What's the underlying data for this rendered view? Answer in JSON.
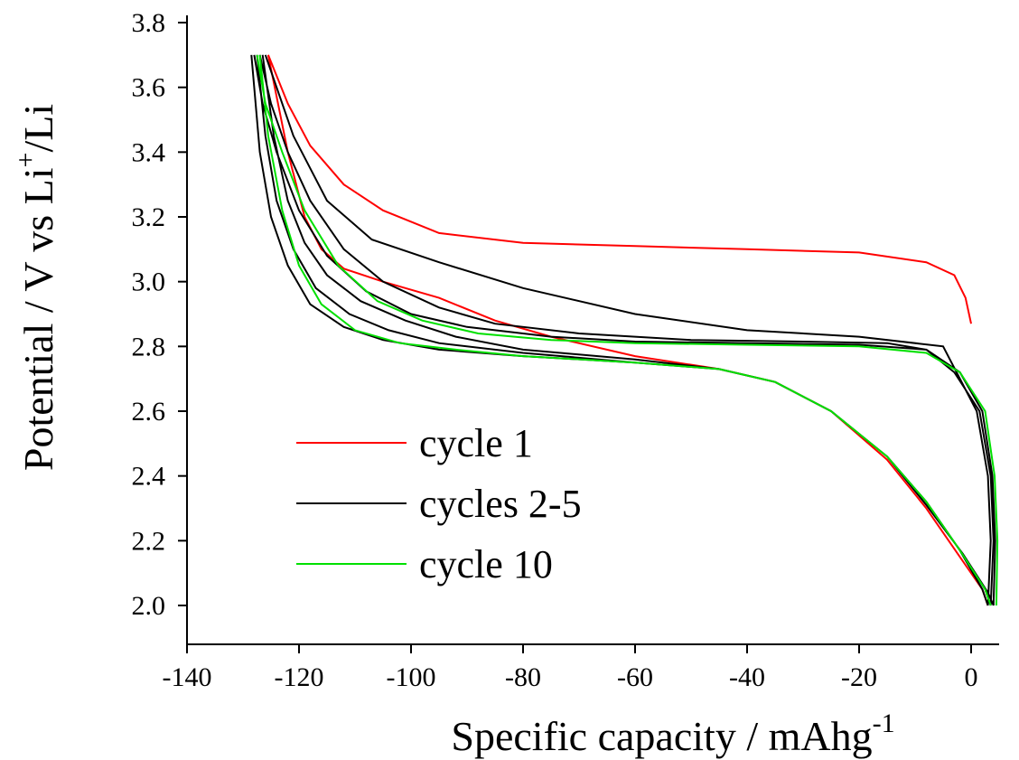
{
  "chart_data": {
    "type": "line",
    "x_label": [
      "Specific capacity / mAhg",
      "-1"
    ],
    "y_label": [
      "Potential / V vs Li",
      "+",
      "/Li"
    ],
    "xlim": [
      -140,
      5
    ],
    "ylim": [
      1.88,
      3.8
    ],
    "xticks": [
      -140,
      -120,
      -100,
      -80,
      -60,
      -40,
      -20,
      0
    ],
    "yticks": [
      {
        "value": 2.0,
        "label": "2.0"
      },
      2.2,
      2.4,
      2.6,
      2.8,
      {
        "value": 3.0,
        "label": "3.0"
      },
      3.2,
      3.4,
      3.6,
      3.8
    ],
    "series": [
      {
        "name": "cycle 1",
        "color": "#ff0000",
        "x": [
          0,
          -1,
          -3,
          -8,
          -20,
          -40,
          -60,
          -80,
          -95,
          -105,
          -112,
          -118,
          -122,
          -125.5,
          null,
          -125.5,
          -122,
          -119,
          -116,
          -112,
          -105,
          -95,
          -85,
          -75,
          -60,
          -45,
          -35,
          -25,
          -15,
          -8,
          -2,
          2,
          3
        ],
        "values": [
          2.87,
          2.95,
          3.02,
          3.06,
          3.09,
          3.1,
          3.11,
          3.12,
          3.15,
          3.22,
          3.3,
          3.42,
          3.55,
          3.7,
          null,
          3.7,
          3.4,
          3.2,
          3.1,
          3.04,
          3.0,
          2.95,
          2.88,
          2.83,
          2.77,
          2.73,
          2.69,
          2.6,
          2.45,
          2.3,
          2.15,
          2.05,
          2.0
        ]
      },
      {
        "name": "cycles 2-5",
        "color": "#000000",
        "x": [
          3,
          3.5,
          3,
          1,
          -5,
          -20,
          -40,
          -60,
          -80,
          -95,
          -107,
          -115,
          -121,
          -126,
          null,
          3.5,
          4,
          3.5,
          1.5,
          -3,
          -8,
          -15,
          -30,
          -50,
          -70,
          -85,
          -95,
          -105,
          -112,
          -118,
          -122,
          -125,
          -127,
          null,
          4,
          4.3,
          3.8,
          2,
          -2,
          -8,
          -20,
          -40,
          -60,
          -75,
          -90,
          -100,
          -108,
          -115,
          -120,
          -124,
          -126.5,
          -128,
          null,
          -128.5,
          -127,
          -125,
          -122,
          -118,
          -112,
          -105,
          -95,
          -80,
          -60,
          -45,
          -35,
          -25,
          -15,
          -8,
          -2,
          2,
          3,
          null,
          -127.5,
          -126,
          -124,
          -121,
          -117,
          -111,
          -104,
          -95,
          -80,
          -60,
          -45,
          -35,
          -25,
          -15,
          -8,
          -2,
          2.5,
          3.5,
          null,
          -126.5,
          -124.5,
          -122,
          -119,
          -115,
          -109,
          -101,
          -92,
          -80,
          -60,
          -45,
          -35,
          -25,
          -15,
          -8,
          -1.5,
          3,
          4
        ],
        "values": [
          2.0,
          2.2,
          2.4,
          2.6,
          2.8,
          2.83,
          2.85,
          2.9,
          2.98,
          3.06,
          3.13,
          3.25,
          3.45,
          3.7,
          null,
          2.0,
          2.2,
          2.4,
          2.6,
          2.72,
          2.79,
          2.81,
          2.815,
          2.82,
          2.84,
          2.87,
          2.92,
          3.0,
          3.1,
          3.25,
          3.4,
          3.55,
          3.7,
          null,
          2.0,
          2.2,
          2.4,
          2.6,
          2.72,
          2.79,
          2.805,
          2.81,
          2.815,
          2.83,
          2.86,
          2.9,
          2.97,
          3.08,
          3.22,
          3.4,
          3.55,
          3.7,
          null,
          3.7,
          3.4,
          3.2,
          3.05,
          2.93,
          2.86,
          2.82,
          2.79,
          2.77,
          2.75,
          2.73,
          2.69,
          2.6,
          2.46,
          2.32,
          2.17,
          2.05,
          2.0,
          null,
          3.7,
          3.45,
          3.25,
          3.1,
          2.98,
          2.9,
          2.85,
          2.81,
          2.78,
          2.75,
          2.73,
          2.69,
          2.6,
          2.46,
          2.32,
          2.17,
          2.05,
          2.0,
          null,
          3.7,
          3.45,
          3.25,
          3.12,
          3.02,
          2.94,
          2.88,
          2.83,
          2.79,
          2.76,
          2.73,
          2.69,
          2.6,
          2.46,
          2.31,
          2.16,
          2.04,
          2.0
        ]
      },
      {
        "name": "cycle 10",
        "color": "#00e000",
        "x": [
          4.5,
          4.7,
          4.2,
          2.5,
          -2,
          -8,
          -20,
          -40,
          -60,
          -75,
          -88,
          -98,
          -106,
          -113,
          -119,
          -123,
          -126,
          -127.5,
          null,
          -127,
          -125.5,
          -123,
          -120,
          -116,
          -110,
          -102,
          -92,
          -80,
          -60,
          -45,
          -35,
          -25,
          -15,
          -8,
          -2,
          2.5,
          3.5
        ],
        "values": [
          2.0,
          2.2,
          2.4,
          2.6,
          2.72,
          2.78,
          2.8,
          2.805,
          2.81,
          2.82,
          2.84,
          2.88,
          2.94,
          3.05,
          3.22,
          3.4,
          3.55,
          3.7,
          null,
          3.7,
          3.45,
          3.22,
          3.05,
          2.93,
          2.85,
          2.81,
          2.79,
          2.77,
          2.75,
          2.73,
          2.69,
          2.6,
          2.46,
          2.32,
          2.17,
          2.05,
          2.0
        ]
      }
    ]
  }
}
